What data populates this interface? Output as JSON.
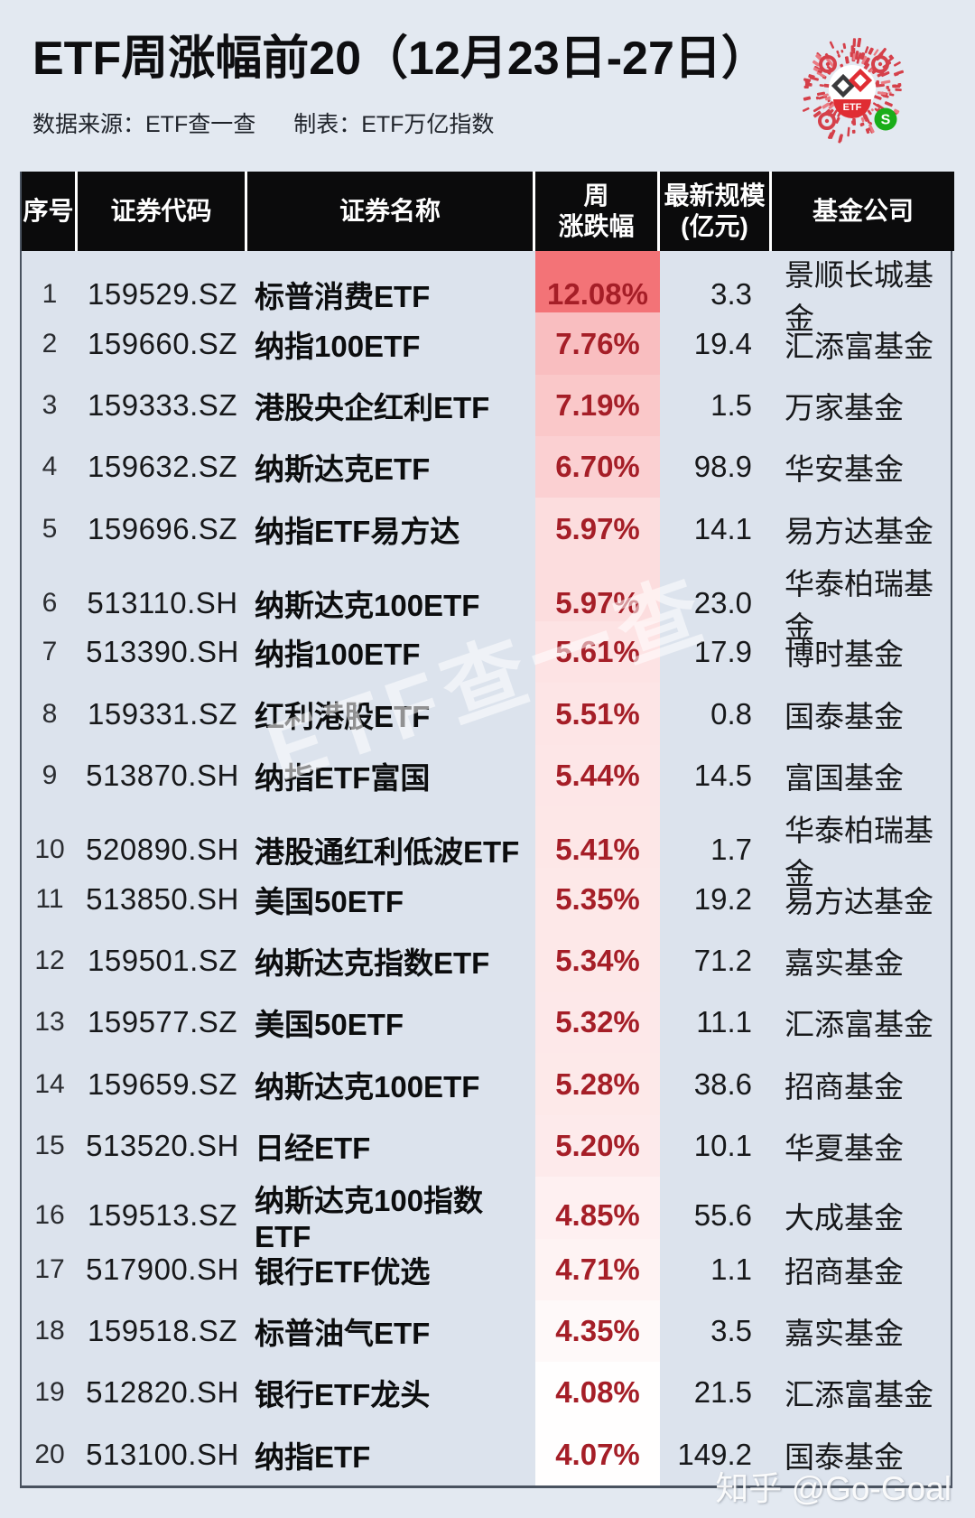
{
  "page": {
    "background": "#e3e9f1"
  },
  "header": {
    "title": "ETF周涨幅前20（12月23日-27日）",
    "source_label": "数据来源：ETF查一查",
    "maker_label": "制表：ETF万亿指数",
    "qr": {
      "center_label": "ETF",
      "brand_red": "#d5404a",
      "wechat_green": "#1aad19"
    }
  },
  "table_header": {
    "rank": "序号",
    "code": "证券代码",
    "name": "证券名称",
    "change_line1": "周",
    "change_line2": "涨跌幅",
    "scale_line1": "最新规模",
    "scale_line2": "(亿元)",
    "company": "基金公司"
  },
  "heat": {
    "low_color": "#ffffff",
    "high_color": "#f37377",
    "min_value": 4.0,
    "max_value": 12.08,
    "text_color": "#a51e27"
  },
  "chart_data": {
    "type": "table",
    "title": "ETF周涨幅前20（12月23日-27日）",
    "columns": [
      "序号",
      "证券代码",
      "证券名称",
      "周涨跌幅",
      "最新规模(亿元)",
      "基金公司"
    ],
    "rows": [
      {
        "rank": "1",
        "code": "159529.SZ",
        "name": "标普消费ETF",
        "change": "12.08%",
        "change_value": 12.08,
        "scale": "3.3",
        "company": "景顺长城基金"
      },
      {
        "rank": "2",
        "code": "159660.SZ",
        "name": "纳指100ETF",
        "change": "7.76%",
        "change_value": 7.76,
        "scale": "19.4",
        "company": "汇添富基金"
      },
      {
        "rank": "3",
        "code": "159333.SZ",
        "name": "港股央企红利ETF",
        "change": "7.19%",
        "change_value": 7.19,
        "scale": "1.5",
        "company": "万家基金"
      },
      {
        "rank": "4",
        "code": "159632.SZ",
        "name": "纳斯达克ETF",
        "change": "6.70%",
        "change_value": 6.7,
        "scale": "98.9",
        "company": "华安基金"
      },
      {
        "rank": "5",
        "code": "159696.SZ",
        "name": "纳指ETF易方达",
        "change": "5.97%",
        "change_value": 5.97,
        "scale": "14.1",
        "company": "易方达基金"
      },
      {
        "rank": "6",
        "code": "513110.SH",
        "name": "纳斯达克100ETF",
        "change": "5.97%",
        "change_value": 5.97,
        "scale": "23.0",
        "company": "华泰柏瑞基金"
      },
      {
        "rank": "7",
        "code": "513390.SH",
        "name": "纳指100ETF",
        "change": "5.61%",
        "change_value": 5.61,
        "scale": "17.9",
        "company": "博时基金"
      },
      {
        "rank": "8",
        "code": "159331.SZ",
        "name": "红利港股ETF",
        "change": "5.51%",
        "change_value": 5.51,
        "scale": "0.8",
        "company": "国泰基金"
      },
      {
        "rank": "9",
        "code": "513870.SH",
        "name": "纳指ETF富国",
        "change": "5.44%",
        "change_value": 5.44,
        "scale": "14.5",
        "company": "富国基金"
      },
      {
        "rank": "10",
        "code": "520890.SH",
        "name": "港股通红利低波ETF",
        "change": "5.41%",
        "change_value": 5.41,
        "scale": "1.7",
        "company": "华泰柏瑞基金"
      },
      {
        "rank": "11",
        "code": "513850.SH",
        "name": "美国50ETF",
        "change": "5.35%",
        "change_value": 5.35,
        "scale": "19.2",
        "company": "易方达基金"
      },
      {
        "rank": "12",
        "code": "159501.SZ",
        "name": "纳斯达克指数ETF",
        "change": "5.34%",
        "change_value": 5.34,
        "scale": "71.2",
        "company": "嘉实基金"
      },
      {
        "rank": "13",
        "code": "159577.SZ",
        "name": "美国50ETF",
        "change": "5.32%",
        "change_value": 5.32,
        "scale": "11.1",
        "company": "汇添富基金"
      },
      {
        "rank": "14",
        "code": "159659.SZ",
        "name": "纳斯达克100ETF",
        "change": "5.28%",
        "change_value": 5.28,
        "scale": "38.6",
        "company": "招商基金"
      },
      {
        "rank": "15",
        "code": "513520.SH",
        "name": "日经ETF",
        "change": "5.20%",
        "change_value": 5.2,
        "scale": "10.1",
        "company": "华夏基金"
      },
      {
        "rank": "16",
        "code": "159513.SZ",
        "name": "纳斯达克100指数ETF",
        "change": "4.85%",
        "change_value": 4.85,
        "scale": "55.6",
        "company": "大成基金"
      },
      {
        "rank": "17",
        "code": "517900.SH",
        "name": "银行ETF优选",
        "change": "4.71%",
        "change_value": 4.71,
        "scale": "1.1",
        "company": "招商基金"
      },
      {
        "rank": "18",
        "code": "159518.SZ",
        "name": "标普油气ETF",
        "change": "4.35%",
        "change_value": 4.35,
        "scale": "3.5",
        "company": "嘉实基金"
      },
      {
        "rank": "19",
        "code": "512820.SH",
        "name": "银行ETF龙头",
        "change": "4.08%",
        "change_value": 4.08,
        "scale": "21.5",
        "company": "汇添富基金"
      },
      {
        "rank": "20",
        "code": "513100.SH",
        "name": "纳指ETF",
        "change": "4.07%",
        "change_value": 4.07,
        "scale": "149.2",
        "company": "国泰基金"
      }
    ]
  },
  "watermark": {
    "text": "ETF查一查"
  },
  "credit": {
    "text": "知乎 @Go-Goal"
  }
}
